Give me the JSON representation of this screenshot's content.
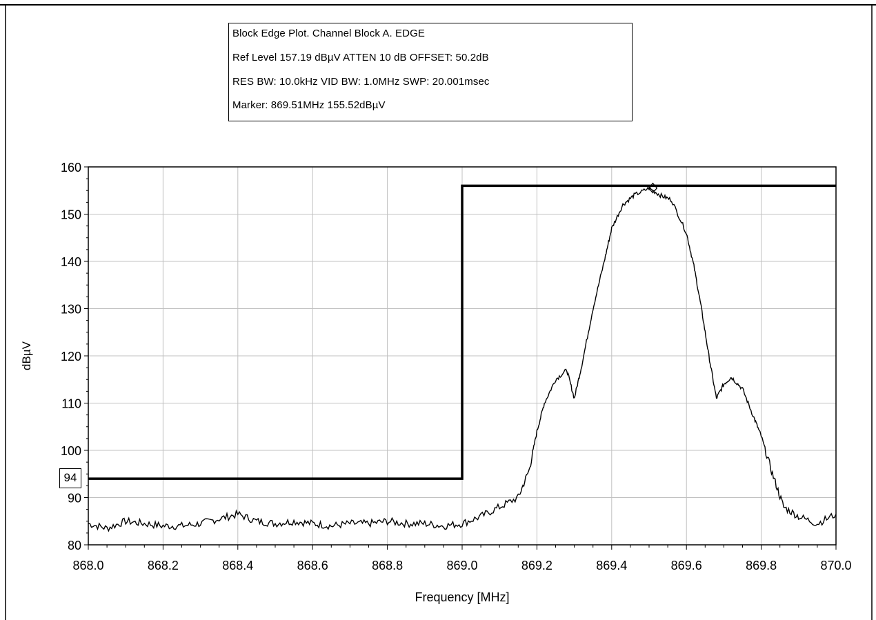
{
  "info": {
    "line1": "Block Edge Plot.  Channel Block A.  EDGE",
    "line2": "Ref Level 157.19 dBµV     ATTEN 10 dB     OFFSET: 50.2dB",
    "line3": "RES BW: 10.0kHz  VID BW: 1.0MHz  SWP: 20.001msec",
    "line4": "Marker: 869.51MHz  155.52dBµV"
  },
  "ref_label": "94",
  "colors": {
    "trace": "#000000",
    "grid": "#c0c0c0",
    "limit": "#000000",
    "background": "#ffffff"
  },
  "chart_data": {
    "type": "line",
    "title": "",
    "xlabel": "Frequency [MHz]",
    "ylabel": "dBµV",
    "xlim": [
      868.0,
      870.0
    ],
    "ylim": [
      80,
      160
    ],
    "xticks": [
      "868.0",
      "868.2",
      "868.4",
      "868.6",
      "868.8",
      "869.0",
      "869.2",
      "869.4",
      "869.6",
      "869.8",
      "870.0"
    ],
    "yticks": [
      "80",
      "90",
      "100",
      "110",
      "120",
      "130",
      "140",
      "150",
      "160"
    ],
    "grid": true,
    "limit_line": {
      "x": [
        868.0,
        869.0,
        869.0,
        870.0
      ],
      "y": [
        94,
        94,
        156,
        156
      ]
    },
    "marker": {
      "x": 869.51,
      "y": 155.52
    },
    "series": [
      {
        "x": [
          868.0,
          868.05,
          868.1,
          868.15,
          868.2,
          868.25,
          868.3,
          868.35,
          868.4,
          868.45,
          868.5,
          868.55,
          868.6,
          868.65,
          868.7,
          868.75,
          868.8,
          868.85,
          868.9,
          868.95,
          869.0,
          869.05,
          869.1,
          869.15,
          869.18,
          869.2,
          869.22,
          869.25,
          869.28,
          869.3,
          869.32,
          869.35,
          869.38,
          869.4,
          869.43,
          869.46,
          869.5,
          869.53,
          869.56,
          869.6,
          869.62,
          869.64,
          869.66,
          869.68,
          869.7,
          869.72,
          869.75,
          869.78,
          869.8,
          869.83,
          869.86,
          869.9,
          869.95,
          870.0
        ],
        "y": [
          84.5,
          83.5,
          85,
          84.5,
          84,
          84,
          84.5,
          85.5,
          86.5,
          85,
          84.5,
          85,
          84.5,
          84,
          84.5,
          84.5,
          85,
          84.5,
          84.5,
          84,
          84.5,
          86,
          88,
          90,
          96,
          104,
          110,
          115,
          117,
          111,
          118,
          130,
          140,
          147,
          152,
          154,
          155.5,
          154,
          153,
          146,
          139,
          130,
          120,
          111,
          114,
          115.5,
          113,
          107,
          103,
          95,
          88,
          86,
          84.5,
          86.5
        ]
      }
    ]
  }
}
